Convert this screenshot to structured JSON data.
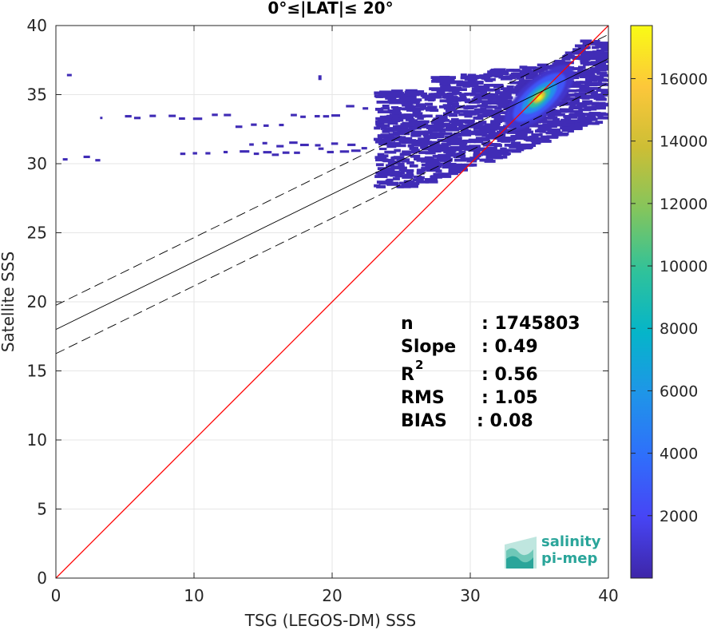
{
  "chart_data": {
    "type": "scatter",
    "subtype": "density-scatter",
    "title": "0°≤|LAT|≤ 20°",
    "xlabel": "TSG (LEGOS-DM) SSS",
    "ylabel": "Satellite SSS",
    "xlim": [
      0,
      40
    ],
    "ylim": [
      0,
      40
    ],
    "xticks": [
      "0",
      "10",
      "20",
      "30",
      "40"
    ],
    "yticks": [
      "0",
      "5",
      "10",
      "15",
      "20",
      "25",
      "30",
      "35",
      "40"
    ],
    "grid": true,
    "colorbar": {
      "range": [
        0,
        17700
      ],
      "ticks": [
        "2000",
        "4000",
        "6000",
        "8000",
        "10000",
        "12000",
        "14000",
        "16000"
      ],
      "colormap": "parula",
      "colors": [
        "#3e26a8",
        "#4745f5",
        "#2f6ffb",
        "#1f95e8",
        "#05b5c9",
        "#30c29a",
        "#83c55d",
        "#ccbe35",
        "#fcc73a",
        "#f9fb15"
      ]
    },
    "reference_line": {
      "slope": 1,
      "intercept": 0,
      "color": "#ff0000"
    },
    "fit_line": {
      "slope": 0.49,
      "intercept": 18.0,
      "color": "#000000"
    },
    "fit_bounds": {
      "offset": 1.75,
      "style": "dashed"
    },
    "peak": {
      "x": 35.0,
      "y": 34.8,
      "max_count": 17000
    },
    "stats": {
      "n_label": "n",
      "n_value": ": 1745803",
      "slope_label": "Slope",
      "slope_value": ": 0.49",
      "r2_label": "R",
      "r2_sup": "2",
      "r2_value": ": 0.56",
      "rms_label": "RMS",
      "rms_value": ": 1.05",
      "bias_label": "BIAS",
      "bias_value": ": 0.08"
    }
  },
  "logo": {
    "line1": "salinity",
    "line2": "pi-mep"
  }
}
